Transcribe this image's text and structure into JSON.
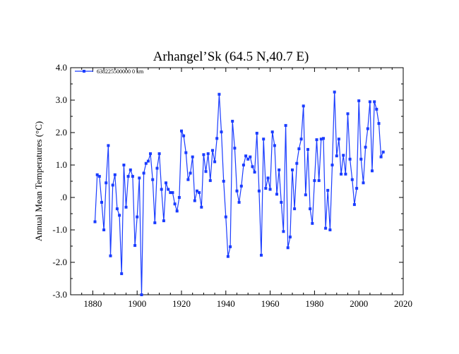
{
  "chart_data": {
    "type": "line",
    "title": "Arhangel’Sk (64.5 N,40.7 E)",
    "xlabel": "",
    "ylabel": "Annual Mean Temperatures (°C)",
    "xlim": [
      1870,
      2020
    ],
    "ylim": [
      -3.0,
      4.0
    ],
    "x_ticks": [
      1880,
      1900,
      1920,
      1940,
      1960,
      1980,
      2000,
      2020
    ],
    "y_ticks": [
      -3.0,
      -2.0,
      -1.0,
      0.0,
      1.0,
      2.0,
      3.0,
      4.0
    ],
    "y_tick_labels": [
      "-3.0",
      "-2.0",
      "-1.0",
      ".0",
      "1.0",
      "2.0",
      "3.0",
      "4.0"
    ],
    "grid": false,
    "legend_position": "top-left",
    "colors": {
      "series": "#1a3cff",
      "axes": "#000000"
    },
    "series": [
      {
        "name": "638225500000  0 km",
        "x": [
          1881,
          1882,
          1883,
          1884,
          1885,
          1886,
          1887,
          1888,
          1889,
          1890,
          1891,
          1892,
          1893,
          1894,
          1895,
          1896,
          1897,
          1898,
          1899,
          1900,
          1901,
          1902,
          1903,
          1904,
          1905,
          1906,
          1907,
          1908,
          1909,
          1910,
          1911,
          1912,
          1913,
          1914,
          1915,
          1916,
          1917,
          1918,
          1919,
          1920,
          1921,
          1922,
          1923,
          1924,
          1925,
          1926,
          1927,
          1928,
          1929,
          1930,
          1931,
          1932,
          1933,
          1934,
          1935,
          1936,
          1937,
          1938,
          1939,
          1940,
          1941,
          1942,
          1943,
          1944,
          1945,
          1946,
          1947,
          1948,
          1949,
          1950,
          1951,
          1952,
          1953,
          1954,
          1955,
          1956,
          1957,
          1958,
          1959,
          1960,
          1961,
          1962,
          1963,
          1964,
          1965,
          1966,
          1967,
          1968,
          1969,
          1970,
          1971,
          1972,
          1973,
          1974,
          1975,
          1976,
          1977,
          1978,
          1979,
          1980,
          1981,
          1982,
          1983,
          1984,
          1985,
          1986,
          1987,
          1988,
          1989,
          1990,
          1991,
          1992,
          1993,
          1994,
          1995,
          1996,
          1997,
          1998,
          1999,
          2000,
          2001,
          2002,
          2003,
          2004,
          2005,
          2006,
          2007,
          2008,
          2009,
          2010,
          2011
        ],
        "values": [
          -0.75,
          0.7,
          0.65,
          -0.15,
          -1.0,
          0.45,
          1.6,
          -1.8,
          0.38,
          0.7,
          -0.35,
          -0.55,
          -2.35,
          1.0,
          -0.3,
          0.65,
          0.85,
          0.65,
          -1.48,
          -0.6,
          0.6,
          -3.0,
          0.75,
          1.05,
          1.12,
          1.35,
          0.55,
          -0.78,
          0.9,
          1.35,
          0.25,
          -0.72,
          0.45,
          0.25,
          0.15,
          0.15,
          -0.2,
          -0.42,
          0.0,
          2.05,
          1.9,
          1.38,
          0.55,
          0.75,
          1.25,
          -0.1,
          0.2,
          0.15,
          -0.3,
          1.32,
          0.8,
          1.35,
          0.52,
          1.45,
          1.1,
          1.82,
          3.18,
          2.02,
          0.5,
          -0.6,
          -1.82,
          -1.52,
          2.35,
          1.52,
          0.2,
          -0.15,
          0.35,
          1.0,
          1.28,
          1.18,
          1.25,
          0.95,
          0.78,
          1.98,
          0.2,
          -1.78,
          1.8,
          0.28,
          0.6,
          0.25,
          2.02,
          1.6,
          0.1,
          0.85,
          -0.15,
          -1.05,
          2.22,
          -1.55,
          -1.22,
          0.85,
          -0.35,
          1.05,
          1.5,
          1.8,
          2.82,
          0.08,
          1.48,
          -0.35,
          -0.8,
          0.52,
          1.78,
          0.52,
          1.8,
          1.82,
          -0.95,
          0.22,
          -1.0,
          1.0,
          3.25,
          1.28,
          1.8,
          0.72,
          1.3,
          0.72,
          2.58,
          1.18,
          0.55,
          -0.22,
          0.28,
          2.98,
          1.18,
          0.45,
          1.55,
          2.12,
          2.95,
          0.82,
          2.95,
          2.72,
          2.28,
          1.25,
          1.4
        ]
      }
    ]
  }
}
